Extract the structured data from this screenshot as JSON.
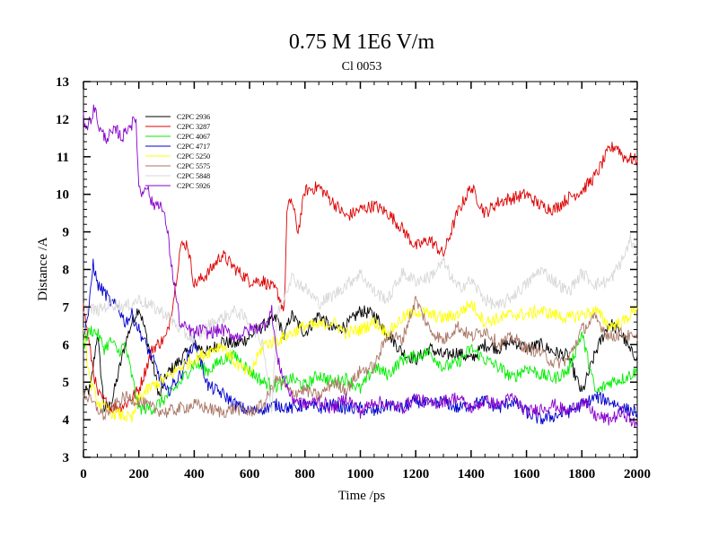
{
  "chart_data": {
    "type": "line",
    "title": "0.75 M 1E6 V/m",
    "subtitle": "Cl 0053",
    "xlabel": "Time /ps",
    "ylabel": "Distance /A",
    "xlim": [
      0,
      2000
    ],
    "ylim": [
      3,
      13
    ],
    "x_ticks": [
      "0",
      "200",
      "400",
      "600",
      "800",
      "1000",
      "1200",
      "1400",
      "1600",
      "1800",
      "2000"
    ],
    "y_ticks": [
      "3",
      "4",
      "5",
      "6",
      "7",
      "8",
      "9",
      "10",
      "11",
      "12",
      "13"
    ],
    "legend_position": "top-left",
    "series": [
      {
        "name": "C2PC 2936",
        "color": "#000000",
        "x": [
          0,
          25,
          50,
          75,
          100,
          125,
          150,
          175,
          200,
          225,
          250,
          275,
          300,
          350,
          400,
          450,
          500,
          550,
          600,
          650,
          700,
          725,
          750,
          800,
          850,
          900,
          950,
          1000,
          1050,
          1100,
          1150,
          1200,
          1250,
          1300,
          1350,
          1400,
          1450,
          1500,
          1550,
          1600,
          1650,
          1700,
          1750,
          1800,
          1850,
          1900,
          1950,
          1975,
          2000
        ],
        "y": [
          4.7,
          4.8,
          6.3,
          4.3,
          4.4,
          5.2,
          6.0,
          6.6,
          7.0,
          6.3,
          5.5,
          4.6,
          5.2,
          5.6,
          6.0,
          5.8,
          6.1,
          6.0,
          6.2,
          6.5,
          6.7,
          6.2,
          6.8,
          6.3,
          6.8,
          6.4,
          6.5,
          6.9,
          6.8,
          6.3,
          5.8,
          5.6,
          5.9,
          5.7,
          5.8,
          5.6,
          6.0,
          5.9,
          6.1,
          5.9,
          6.0,
          5.8,
          5.7,
          4.7,
          5.8,
          6.6,
          6.2,
          5.8,
          5.7
        ]
      },
      {
        "name": "C2PC 3287",
        "color": "#dd0000",
        "x": [
          0,
          25,
          50,
          75,
          100,
          150,
          200,
          250,
          300,
          325,
          350,
          375,
          400,
          450,
          500,
          550,
          600,
          650,
          700,
          725,
          735,
          750,
          775,
          800,
          850,
          900,
          950,
          1000,
          1050,
          1100,
          1150,
          1200,
          1250,
          1300,
          1350,
          1400,
          1450,
          1500,
          1550,
          1600,
          1650,
          1700,
          1750,
          1800,
          1850,
          1900,
          1925,
          1950,
          2000
        ],
        "y": [
          7.0,
          5.8,
          4.7,
          4.5,
          4.3,
          4.4,
          4.8,
          5.9,
          6.2,
          7.2,
          8.6,
          8.7,
          7.6,
          7.9,
          8.4,
          8.0,
          7.7,
          7.7,
          7.4,
          6.9,
          9.5,
          9.9,
          9.0,
          10.1,
          10.2,
          9.8,
          9.4,
          9.6,
          9.7,
          9.5,
          9.1,
          8.6,
          8.8,
          8.4,
          9.5,
          10.2,
          9.5,
          9.8,
          9.9,
          10.0,
          9.7,
          9.6,
          9.9,
          10.1,
          10.5,
          11.2,
          11.3,
          11.0,
          10.9
        ]
      },
      {
        "name": "C2PC 4067",
        "color": "#00ee00",
        "x": [
          0,
          25,
          50,
          75,
          100,
          125,
          150,
          200,
          250,
          300,
          350,
          400,
          450,
          500,
          550,
          600,
          650,
          700,
          750,
          800,
          850,
          900,
          950,
          1000,
          1050,
          1100,
          1150,
          1200,
          1250,
          1300,
          1350,
          1400,
          1450,
          1500,
          1550,
          1600,
          1650,
          1700,
          1750,
          1800,
          1850,
          1900,
          1950,
          2000
        ],
        "y": [
          6.0,
          6.4,
          6.3,
          5.9,
          6.1,
          5.8,
          6.0,
          4.3,
          4.3,
          4.6,
          5.0,
          5.5,
          5.3,
          5.6,
          5.7,
          5.3,
          5.0,
          4.9,
          5.1,
          4.9,
          5.2,
          5.0,
          5.1,
          4.8,
          5.4,
          5.2,
          5.6,
          5.7,
          5.8,
          5.4,
          5.5,
          5.9,
          5.6,
          5.4,
          5.1,
          5.4,
          5.2,
          5.1,
          5.3,
          6.3,
          4.7,
          5.0,
          5.1,
          5.3
        ]
      },
      {
        "name": "C2PC 4717",
        "color": "#0000cc",
        "x": [
          0,
          20,
          35,
          50,
          75,
          100,
          125,
          150,
          175,
          200,
          250,
          300,
          350,
          400,
          450,
          500,
          550,
          600,
          650,
          700,
          750,
          800,
          850,
          900,
          950,
          1000,
          1050,
          1100,
          1150,
          1200,
          1250,
          1300,
          1350,
          1400,
          1450,
          1500,
          1550,
          1600,
          1650,
          1700,
          1750,
          1800,
          1850,
          1900,
          1950,
          2000
        ],
        "y": [
          6.3,
          6.9,
          8.2,
          7.6,
          7.4,
          7.1,
          7.0,
          6.6,
          6.8,
          6.4,
          5.6,
          4.7,
          5.2,
          6.1,
          4.9,
          4.7,
          4.4,
          4.2,
          4.3,
          4.4,
          4.3,
          4.4,
          4.3,
          4.4,
          4.3,
          4.3,
          4.2,
          4.4,
          4.3,
          4.5,
          4.4,
          4.5,
          4.3,
          4.4,
          4.5,
          4.3,
          4.5,
          4.2,
          4.0,
          4.1,
          4.2,
          4.4,
          4.6,
          4.5,
          4.3,
          4.2
        ]
      },
      {
        "name": "C2PC 5250",
        "color": "#ffff00",
        "x": [
          0,
          25,
          50,
          75,
          100,
          150,
          175,
          200,
          250,
          300,
          350,
          400,
          450,
          500,
          550,
          600,
          650,
          700,
          750,
          800,
          850,
          900,
          950,
          1000,
          1050,
          1100,
          1150,
          1200,
          1250,
          1300,
          1350,
          1400,
          1450,
          1500,
          1550,
          1600,
          1650,
          1700,
          1750,
          1800,
          1850,
          1900,
          1950,
          2000
        ],
        "y": [
          6.3,
          5.0,
          4.5,
          4.3,
          4.2,
          4.1,
          4.0,
          4.6,
          4.9,
          5.1,
          5.4,
          5.6,
          5.8,
          6.0,
          5.5,
          5.2,
          6.0,
          6.1,
          6.3,
          6.5,
          6.5,
          6.6,
          6.3,
          6.4,
          6.6,
          6.3,
          6.7,
          6.9,
          6.8,
          6.7,
          6.8,
          7.1,
          6.6,
          6.7,
          6.8,
          6.8,
          6.9,
          6.8,
          6.7,
          6.8,
          6.9,
          6.5,
          6.6,
          7.0
        ]
      },
      {
        "name": "C2PC 5575",
        "color": "#aa7766",
        "x": [
          0,
          25,
          50,
          75,
          100,
          150,
          200,
          250,
          300,
          350,
          400,
          450,
          500,
          550,
          600,
          650,
          700,
          750,
          800,
          850,
          900,
          950,
          1000,
          1050,
          1100,
          1150,
          1200,
          1250,
          1300,
          1350,
          1400,
          1450,
          1500,
          1550,
          1600,
          1650,
          1700,
          1750,
          1800,
          1850,
          1900,
          1950,
          2000
        ],
        "y": [
          4.7,
          4.5,
          4.3,
          4.1,
          4.3,
          4.6,
          4.5,
          4.3,
          4.2,
          4.3,
          4.4,
          4.3,
          4.2,
          4.3,
          4.2,
          4.4,
          5.1,
          4.7,
          4.8,
          4.6,
          5.0,
          4.8,
          5.3,
          5.4,
          6.3,
          6.1,
          7.2,
          6.4,
          6.1,
          6.5,
          6.2,
          6.4,
          6.0,
          6.2,
          5.9,
          5.8,
          5.5,
          5.6,
          6.4,
          6.7,
          6.2,
          6.3,
          6.1
        ]
      },
      {
        "name": "C2PC 5848",
        "color": "#d8d8d8",
        "x": [
          0,
          50,
          100,
          150,
          200,
          250,
          300,
          350,
          400,
          450,
          500,
          550,
          600,
          650,
          680,
          700,
          750,
          800,
          850,
          900,
          950,
          1000,
          1050,
          1100,
          1150,
          1200,
          1250,
          1300,
          1350,
          1400,
          1450,
          1500,
          1550,
          1600,
          1650,
          1700,
          1750,
          1800,
          1850,
          1900,
          1950,
          1975,
          2000
        ],
        "y": [
          7.0,
          6.9,
          7.1,
          7.0,
          7.2,
          7.0,
          6.8,
          6.4,
          6.1,
          6.5,
          6.7,
          6.9,
          6.6,
          6.0,
          4.2,
          6.8,
          7.8,
          7.5,
          7.1,
          7.3,
          7.6,
          7.9,
          7.4,
          7.2,
          7.9,
          7.7,
          7.8,
          8.2,
          7.5,
          7.7,
          7.2,
          7.0,
          7.3,
          7.6,
          8.0,
          7.7,
          7.4,
          7.9,
          7.6,
          7.7,
          8.3,
          8.8,
          8.4
        ]
      },
      {
        "name": "C2PC 5926",
        "color": "#8800cc",
        "x": [
          0,
          15,
          30,
          40,
          60,
          80,
          100,
          120,
          140,
          160,
          180,
          190,
          200,
          210,
          225,
          250,
          275,
          300,
          320,
          350,
          380,
          400,
          425,
          450,
          500,
          550,
          600,
          650,
          680,
          700,
          750,
          800,
          850,
          900,
          950,
          1000,
          1050,
          1100,
          1150,
          1200,
          1250,
          1300,
          1350,
          1400,
          1450,
          1500,
          1550,
          1600,
          1650,
          1700,
          1750,
          1800,
          1850,
          1900,
          1950,
          2000
        ],
        "y": [
          12.0,
          11.8,
          12.1,
          12.3,
          11.7,
          11.5,
          11.6,
          11.7,
          11.5,
          11.8,
          11.9,
          12.0,
          10.2,
          10.0,
          10.3,
          9.7,
          9.8,
          9.2,
          8.0,
          6.5,
          6.4,
          6.3,
          6.4,
          6.3,
          6.4,
          6.2,
          6.4,
          6.5,
          6.9,
          5.6,
          4.6,
          4.4,
          4.5,
          4.3,
          4.6,
          4.2,
          4.5,
          4.4,
          4.3,
          4.6,
          4.4,
          4.5,
          4.6,
          4.3,
          4.5,
          4.4,
          4.6,
          4.2,
          4.3,
          4.4,
          4.2,
          4.5,
          4.1,
          4.0,
          4.2,
          3.8
        ]
      }
    ]
  }
}
